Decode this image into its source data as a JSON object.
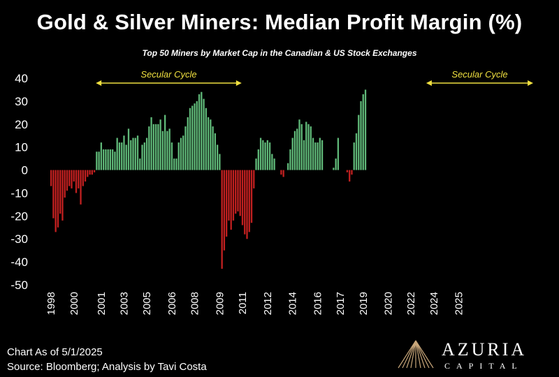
{
  "title": "Gold & Silver Miners: Median Profit Margin (%)",
  "subtitle": "Top 50 Miners by Market Cap in the Canadian & US Stock Exchanges",
  "footer": {
    "date": "Chart As of 5/1/2025",
    "source": "Source: Bloomberg; Analysis by Tavi Costa"
  },
  "logo": {
    "name": "AZURIA",
    "sub": "CAPITAL"
  },
  "colors": {
    "positive": "#5fb878",
    "negative": "#c22020",
    "annotation": "#f0e040",
    "background": "#000000",
    "text": "#ffffff"
  },
  "chart_data": {
    "type": "bar",
    "ylim": [
      -50,
      40
    ],
    "yticks": [
      40,
      30,
      20,
      10,
      0,
      -10,
      -20,
      -30,
      -40,
      -50
    ],
    "xticks": [
      {
        "label": "1998",
        "index": 0
      },
      {
        "label": "2000",
        "index": 10
      },
      {
        "label": "2001",
        "index": 22
      },
      {
        "label": "2003",
        "index": 32
      },
      {
        "label": "2005",
        "index": 42
      },
      {
        "label": "2006",
        "index": 53
      },
      {
        "label": "2008",
        "index": 63
      },
      {
        "label": "2009",
        "index": 74
      },
      {
        "label": "2011",
        "index": 84
      },
      {
        "label": "2012",
        "index": 95
      },
      {
        "label": "2014",
        "index": 106
      },
      {
        "label": "2016",
        "index": 117
      },
      {
        "label": "2017",
        "index": 127
      },
      {
        "label": "2019",
        "index": 137
      },
      {
        "label": "2020",
        "index": 148
      },
      {
        "label": "2022",
        "index": 158
      },
      {
        "label": "2024",
        "index": 168
      },
      {
        "label": "2025",
        "index": 179
      }
    ],
    "values": [
      -7,
      -21,
      -27,
      -25,
      -19,
      -22,
      -12,
      -9,
      -7,
      -8,
      -5,
      -10,
      -8,
      -15,
      -7,
      -5,
      -3,
      -2,
      -2,
      -1,
      8,
      8,
      12,
      9,
      9,
      9,
      9,
      9,
      8,
      14,
      12,
      12,
      15,
      11,
      18,
      13,
      14,
      14,
      15,
      5,
      11,
      12,
      14,
      19,
      23,
      20,
      20,
      20,
      22,
      17,
      24,
      17,
      18,
      12,
      5,
      5,
      12,
      14,
      15,
      19,
      23,
      27,
      28,
      29,
      30,
      33,
      34,
      31,
      27,
      23,
      22,
      19,
      16,
      11,
      7,
      -43,
      -35,
      -29,
      -22,
      -26,
      -22,
      -19,
      -18,
      -20,
      -24,
      -28,
      -30,
      -27,
      -23,
      -8,
      5,
      9,
      14,
      13,
      12,
      13,
      12,
      7,
      5,
      0,
      0,
      -2,
      -3,
      0,
      3,
      9,
      14,
      17,
      18,
      22,
      20,
      13,
      21,
      20,
      19,
      14,
      12,
      12,
      14,
      13,
      0,
      0,
      0,
      0,
      1,
      5,
      14,
      0,
      0,
      0,
      -1,
      -5,
      -2,
      12,
      16,
      24,
      30,
      33,
      35
    ],
    "annotations": [
      {
        "text": "Secular Cycle",
        "from_index": 20,
        "to_index": 84
      },
      {
        "text": "Secular Cycle",
        "from_index": 165,
        "to_index": 212
      }
    ]
  }
}
